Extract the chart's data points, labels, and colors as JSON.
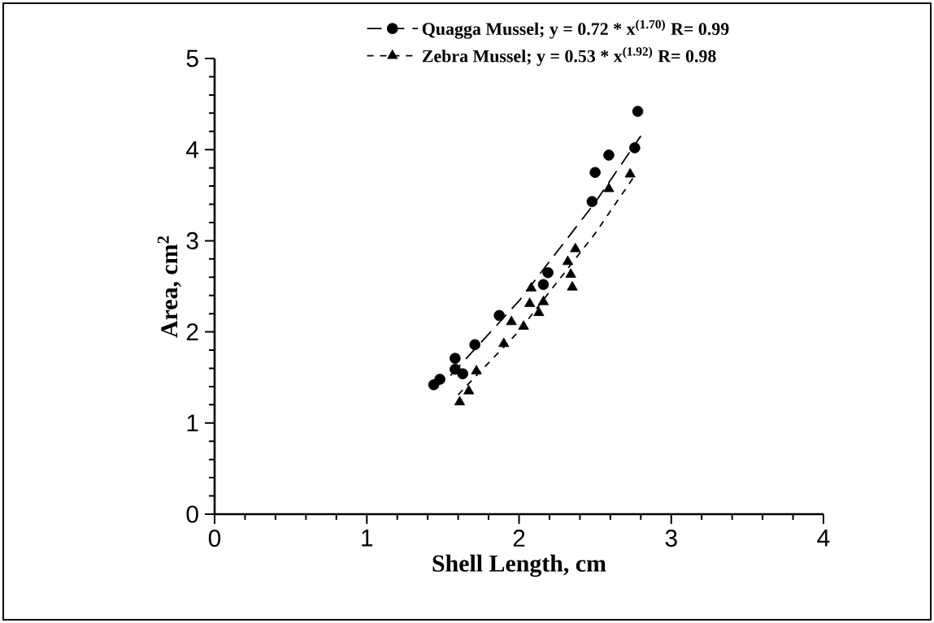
{
  "chart_data": {
    "type": "scatter",
    "xlabel": "Shell Length, cm",
    "ylabel": "Area, cm$^{2}$",
    "xlim": [
      0,
      4
    ],
    "xticks": [
      0,
      1,
      2,
      3,
      4
    ],
    "ylim": [
      0,
      5
    ],
    "yticks": [
      0,
      1,
      2,
      3,
      4,
      5
    ],
    "grid": false,
    "legend": "top",
    "series": [
      {
        "name": "Quagga Mussel;   y = 0.72  * x$^{(1.70)}$   R= 0.99",
        "marker": "circle",
        "color": "#000000",
        "x": [
          1.44,
          1.48,
          1.58,
          1.58,
          1.63,
          1.71,
          1.87,
          2.16,
          2.19,
          2.48,
          2.5,
          2.59,
          2.76,
          2.78
        ],
        "values": [
          1.42,
          1.48,
          1.71,
          1.59,
          1.54,
          1.86,
          2.18,
          2.52,
          2.65,
          3.43,
          3.75,
          3.94,
          4.02,
          4.42
        ]
      },
      {
        "type": "line",
        "line_style": "dashed",
        "marker": "none",
        "color": "#000000",
        "x": [
          1.55,
          2.0,
          2.5,
          2.8
        ],
        "values": [
          1.52,
          2.34,
          3.42,
          4.15
        ]
      },
      {
        "name": "Zebra Mussel;   y = 0.53  * x$^{(1.92)}$  R= 0.98",
        "marker": "triangle",
        "color": "#000000",
        "x": [
          1.61,
          1.67,
          1.72,
          1.9,
          1.95,
          2.03,
          2.07,
          2.08,
          2.13,
          2.16,
          2.32,
          2.34,
          2.35,
          2.37,
          2.59,
          2.73
        ],
        "values": [
          1.23,
          1.35,
          1.57,
          1.87,
          2.11,
          2.06,
          2.31,
          2.48,
          2.21,
          2.33,
          2.77,
          2.63,
          2.49,
          2.91,
          3.57,
          3.73
        ]
      },
      {
        "type": "line",
        "line_style": "dotted",
        "marker": "none",
        "color": "#000000",
        "x": [
          1.6,
          2.0,
          2.5,
          2.75
        ],
        "values": [
          1.31,
          2.01,
          3.08,
          3.69
        ]
      }
    ]
  }
}
